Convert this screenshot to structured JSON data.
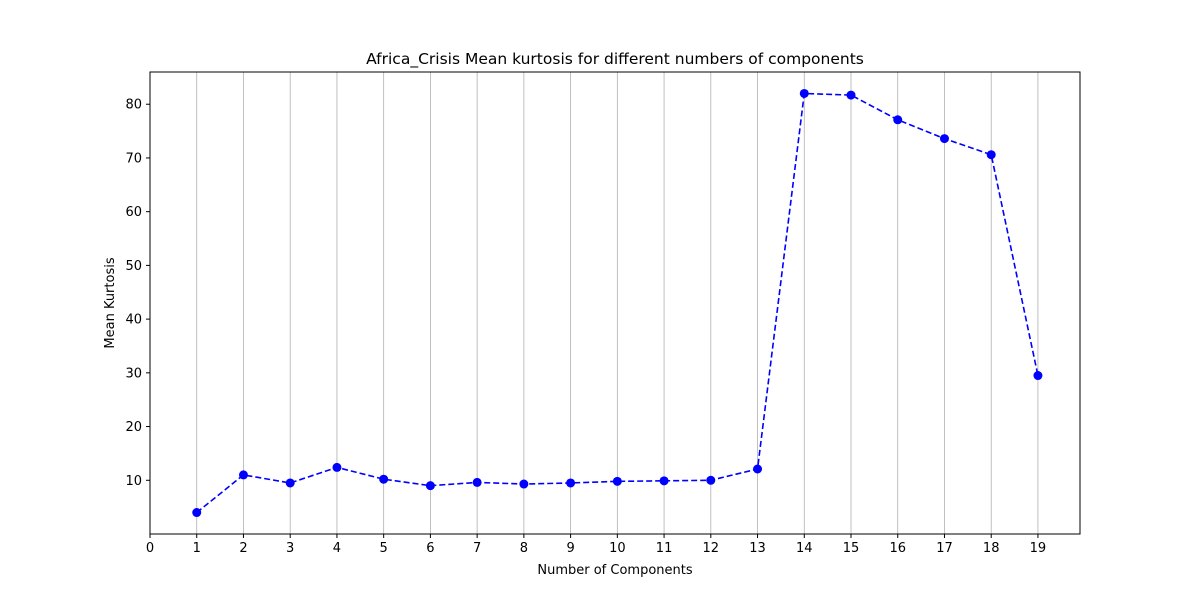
{
  "chart_data": {
    "type": "line",
    "title": "Africa_Crisis Mean kurtosis for different numbers of components",
    "xlabel": "Number of Components",
    "ylabel": "Mean Kurtosis",
    "x_ticks": [
      0,
      1,
      2,
      3,
      4,
      5,
      6,
      7,
      8,
      9,
      10,
      11,
      12,
      13,
      14,
      15,
      16,
      17,
      18,
      19
    ],
    "y_ticks": [
      10,
      20,
      30,
      40,
      50,
      60,
      70,
      80
    ],
    "xlim": [
      0,
      19.9
    ],
    "ylim": [
      0,
      86
    ],
    "grid": "vertical",
    "series": [
      {
        "x": [
          1,
          2,
          3,
          4,
          5,
          6,
          7,
          8,
          9,
          10,
          11,
          12,
          13,
          14,
          15,
          16,
          17,
          18,
          19
        ],
        "values": [
          4.0,
          11.0,
          9.5,
          12.4,
          10.2,
          9.0,
          9.6,
          9.3,
          9.5,
          9.8,
          9.9,
          10.0,
          12.1,
          82.0,
          81.7,
          77.1,
          73.6,
          70.6,
          29.5
        ],
        "color": "#0000ff",
        "line_style": "dashed",
        "marker": "circle"
      }
    ]
  }
}
